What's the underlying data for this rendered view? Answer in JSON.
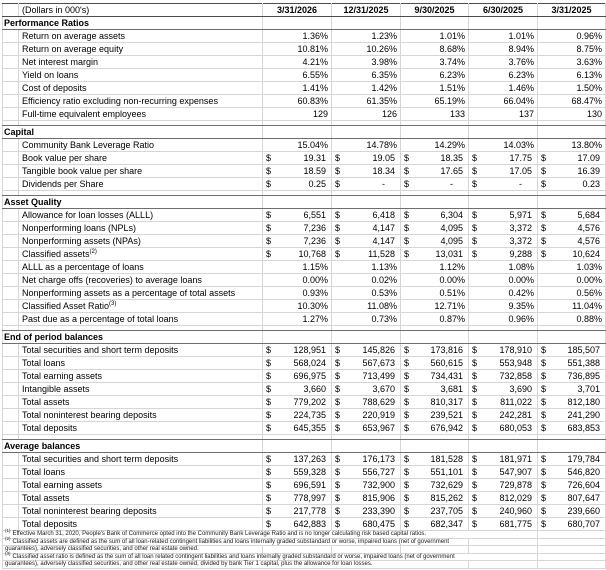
{
  "currency_symbol": "$",
  "header": {
    "units_note": "(Dollars in 000's)",
    "columns": [
      "3/31/2026",
      "12/31/2025",
      "9/30/2025",
      "6/30/2025",
      "3/31/2025"
    ]
  },
  "sections": [
    {
      "title": "Performance Ratios",
      "rows": [
        {
          "label": "Return on average assets",
          "type": "pct",
          "values": [
            "1.36%",
            "1.23%",
            "1.01%",
            "1.01%",
            "0.96%"
          ]
        },
        {
          "label": "Return on average equity",
          "type": "pct",
          "values": [
            "10.81%",
            "10.26%",
            "8.68%",
            "8.94%",
            "8.75%"
          ]
        },
        {
          "label": "Net interest margin",
          "type": "pct",
          "values": [
            "4.21%",
            "3.98%",
            "3.74%",
            "3.76%",
            "3.63%"
          ]
        },
        {
          "label": "Yield on loans",
          "type": "pct",
          "values": [
            "6.55%",
            "6.35%",
            "6.23%",
            "6.23%",
            "6.13%"
          ]
        },
        {
          "label": "Cost of deposits",
          "type": "pct",
          "values": [
            "1.41%",
            "1.42%",
            "1.51%",
            "1.46%",
            "1.50%"
          ]
        },
        {
          "label": "Efficiency ratio excluding non-recurring expenses",
          "type": "pct",
          "values": [
            "60.83%",
            "61.35%",
            "65.19%",
            "66.04%",
            "68.47%"
          ]
        },
        {
          "label": "Full-time equivalent employees",
          "type": "num",
          "values": [
            "129",
            "126",
            "133",
            "137",
            "130"
          ]
        }
      ]
    },
    {
      "title": "Capital",
      "rows": [
        {
          "label": "Community Bank Leverage Ratio",
          "type": "pct",
          "values": [
            "15.04%",
            "14.78%",
            "14.29%",
            "14.03%",
            "13.80%"
          ]
        },
        {
          "label": "Book value per share",
          "type": "usd",
          "values": [
            "19.31",
            "19.05",
            "18.35",
            "17.75",
            "17.09"
          ]
        },
        {
          "label": "Tangible book value per share",
          "type": "usd",
          "values": [
            "18.59",
            "18.34",
            "17.65",
            "17.05",
            "16.39"
          ]
        },
        {
          "label": "Dividends per Share",
          "type": "usd",
          "values": [
            "0.25",
            "-",
            "-",
            "-",
            "0.23"
          ]
        }
      ]
    },
    {
      "title": "Asset Quality",
      "rows": [
        {
          "label": "Allowance for loan losses (ALLL)",
          "type": "usd",
          "values": [
            "6,551",
            "6,418",
            "6,304",
            "5,971",
            "5,684"
          ]
        },
        {
          "label": "Nonperforming loans (NPLs)",
          "type": "usd",
          "values": [
            "7,236",
            "4,147",
            "4,095",
            "3,372",
            "4,576"
          ]
        },
        {
          "label": "Nonperforming assets (NPAs)",
          "type": "usd",
          "values": [
            "7,236",
            "4,147",
            "4,095",
            "3,372",
            "4,576"
          ]
        },
        {
          "label": "Classified assets",
          "sup": "(2)",
          "type": "usd",
          "values": [
            "10,768",
            "11,528",
            "13,031",
            "9,288",
            "10,624"
          ]
        },
        {
          "label": "ALLL as a percentage of loans",
          "type": "pct",
          "values": [
            "1.15%",
            "1.13%",
            "1.12%",
            "1.08%",
            "1.03%"
          ]
        },
        {
          "label": "Net charge offs (recoveries) to average loans",
          "type": "pct",
          "values": [
            "0.00%",
            "0.02%",
            "0.00%",
            "0.00%",
            "0.00%"
          ]
        },
        {
          "label": "Nonperforming assets as a percentage of total assets",
          "type": "pct",
          "values": [
            "0.93%",
            "0.53%",
            "0.51%",
            "0.42%",
            "0.56%"
          ]
        },
        {
          "label": "Classified Asset Ratio",
          "sup": "(3)",
          "type": "pct",
          "values": [
            "10.30%",
            "11.08%",
            "12.71%",
            "9.35%",
            "11.04%"
          ]
        },
        {
          "label": "Past due as a percentage of total loans",
          "type": "pct",
          "values": [
            "1.27%",
            "0.73%",
            "0.87%",
            "0.96%",
            "0.88%"
          ]
        }
      ]
    },
    {
      "title": "End of period balances",
      "rows": [
        {
          "label": "Total securities and short term deposits",
          "type": "usd",
          "values": [
            "128,951",
            "145,826",
            "173,816",
            "178,910",
            "185,507"
          ]
        },
        {
          "label": "Total loans",
          "type": "usd",
          "values": [
            "568,024",
            "567,673",
            "560,615",
            "553,948",
            "551,388"
          ]
        },
        {
          "label": "Total earning assets",
          "type": "usd",
          "values": [
            "696,975",
            "713,499",
            "734,431",
            "732,858",
            "736,895"
          ]
        },
        {
          "label": "Intangible assets",
          "type": "usd",
          "values": [
            "3,660",
            "3,670",
            "3,681",
            "3,690",
            "3,701"
          ]
        },
        {
          "label": "Total assets",
          "type": "usd",
          "values": [
            "779,202",
            "788,629",
            "810,317",
            "811,022",
            "812,180"
          ]
        },
        {
          "label": "Total noninterest bearing deposits",
          "type": "usd",
          "values": [
            "224,735",
            "220,919",
            "239,521",
            "242,281",
            "241,290"
          ]
        },
        {
          "label": "Total deposits",
          "type": "usd",
          "values": [
            "645,355",
            "653,967",
            "676,942",
            "680,053",
            "683,853"
          ]
        }
      ]
    },
    {
      "title": "Average balances",
      "rows": [
        {
          "label": "Total securities and short term deposits",
          "type": "usd",
          "values": [
            "137,263",
            "176,173",
            "181,528",
            "181,971",
            "179,784"
          ]
        },
        {
          "label": "Total loans",
          "type": "usd",
          "values": [
            "559,328",
            "556,727",
            "551,101",
            "547,907",
            "546,820"
          ]
        },
        {
          "label": "Total earning assets",
          "type": "usd",
          "values": [
            "696,591",
            "732,900",
            "732,629",
            "729,878",
            "726,604"
          ]
        },
        {
          "label": "Total assets",
          "type": "usd",
          "values": [
            "778,997",
            "815,906",
            "815,262",
            "812,029",
            "807,647"
          ]
        },
        {
          "label": "Total noninterest bearing deposits",
          "type": "usd",
          "values": [
            "217,778",
            "233,390",
            "237,705",
            "240,960",
            "239,660"
          ]
        },
        {
          "label": "Total deposits",
          "type": "usd",
          "values": [
            "642,883",
            "680,475",
            "682,347",
            "681,775",
            "680,707"
          ]
        }
      ]
    }
  ],
  "footnotes": [
    {
      "sup": "(1)",
      "span": 6,
      "text": "Effective March 31, 2020, People's Bank of Commerce opted into the Community Bank Leverage Ratio and is no longer calculating risk based capital ratios."
    },
    {
      "sup": "(2)",
      "span": 5,
      "text": "Classified assets are defined as the sum of all loan-related contingent liabilities and loans internally graded substandard or worse, impaired loans (net of government"
    },
    {
      "sup": "",
      "span": 2,
      "text": "guarantees), adversely classified securities, and other real estate owned."
    },
    {
      "sup": "(3)",
      "span": 6,
      "text": "Classified asset ratio is defined as the sum of all loan related contingent liabilities and loans internally graded substandard or worse, impaired loans (net of government"
    },
    {
      "sup": "",
      "span": 5,
      "text": "guarantees), adversely classified securities, and other real estate owned, divided by bank Tier 1 capital, plus the allowance for loan losses."
    }
  ]
}
